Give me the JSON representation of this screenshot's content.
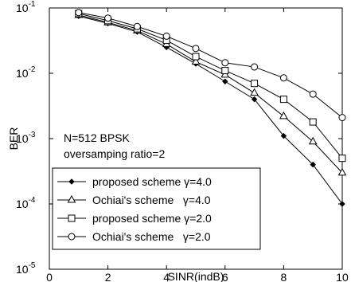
{
  "chart_data": {
    "type": "line",
    "title": "",
    "xlabel": "SINR(indB)",
    "ylabel": "BER",
    "xlim": [
      0,
      10
    ],
    "ylim": [
      1e-05,
      0.1
    ],
    "yscale": "log",
    "grid": false,
    "legend_position": "bottom-left",
    "x_ticks": [
      {
        "value": 0,
        "label": "0"
      },
      {
        "value": 2,
        "label": "2"
      },
      {
        "value": 4,
        "label": "4"
      },
      {
        "value": 6,
        "label": "6"
      },
      {
        "value": 8,
        "label": "8"
      },
      {
        "value": 10,
        "label": "10"
      }
    ],
    "y_ticks": [
      {
        "value": 1e-05,
        "base": "10",
        "exp": "-5"
      },
      {
        "value": 0.0001,
        "base": "10",
        "exp": "-4"
      },
      {
        "value": 0.001,
        "base": "10",
        "exp": "-3"
      },
      {
        "value": 0.01,
        "base": "10",
        "exp": "-2"
      },
      {
        "value": 0.1,
        "base": "10",
        "exp": "-1"
      }
    ],
    "annotations": [
      "N=512 BPSK",
      "oversamping ratio=2"
    ],
    "x": [
      1,
      2,
      3,
      4,
      5,
      6,
      7,
      8,
      9,
      10
    ],
    "series": [
      {
        "name": "proposed scheme γ=4.0",
        "marker": "diamond",
        "values": [
          0.075,
          0.058,
          0.043,
          0.025,
          0.014,
          0.0075,
          0.004,
          0.0011,
          0.0004,
          0.0001
        ]
      },
      {
        "name": "Ochiai's scheme   γ=4.0",
        "marker": "triangle",
        "values": [
          0.078,
          0.06,
          0.045,
          0.028,
          0.015,
          0.0095,
          0.005,
          0.0022,
          0.0009,
          0.0003
        ]
      },
      {
        "name": "proposed scheme γ=2.0",
        "marker": "square",
        "values": [
          0.082,
          0.064,
          0.048,
          0.032,
          0.018,
          0.011,
          0.007,
          0.004,
          0.0018,
          0.0005
        ]
      },
      {
        "name": "Ochiai's scheme   γ=2.0",
        "marker": "circle",
        "values": [
          0.085,
          0.07,
          0.052,
          0.037,
          0.024,
          0.0145,
          0.0125,
          0.0085,
          0.0048,
          0.0021
        ]
      }
    ]
  }
}
